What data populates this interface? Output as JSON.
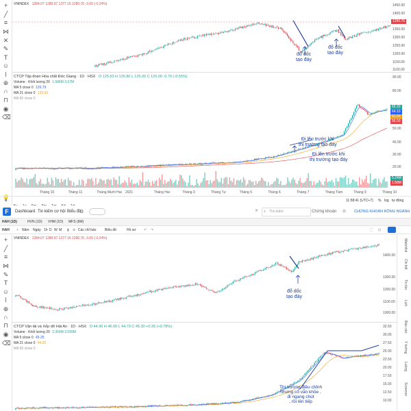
{
  "top": {
    "index_label": "VNINDEX",
    "index_values": "1284.07 1288.97 1277.16 1280.76 -3.05 (-0.24%)",
    "stock_title": "CTCP Tập đoàn Hóa chất Đức Giang · 1D · HSX",
    "stock_values": "O 125.60 H 126.80 L 125.00 C 126.00 -0.70 (-0.55%)",
    "volume_label": "Volume · Khối lượng 20",
    "volume_values": "1.586M 3.67M",
    "ma5_label": "MA 5 close 0",
    "ma5_value": "126.79",
    "ma21_label": "MA 21 close 0",
    "ma21_value": "125.93",
    "ma65_label": "MA 65 close 0",
    "index_axis": [
      "1450.00",
      "1400.00",
      "1350.00",
      "1300.00",
      "1250.00",
      "1200.00",
      "1150.00",
      "1100.00"
    ],
    "index_price_tag": "1280.76",
    "stock_axis": [
      "90.00",
      "80.00",
      "70.00",
      "60.00",
      "50.00",
      "40.00",
      "30.00",
      "20.00",
      "10.00"
    ],
    "stock_price_tags": [
      "65.20",
      "64.10",
      "61.90",
      "56.50"
    ],
    "vol_tags": [
      "5.24M",
      "1.58M"
    ],
    "time_labels": [
      "Tháng 10",
      "Tháng 11",
      "Tháng Mười Hai",
      "2021",
      "Tháng Hai",
      "Tháng 3",
      "Tháng Tư",
      "Tháng 5",
      "Tháng 6",
      "Tháng 7",
      "Tháng Tám",
      "Tháng 9",
      "Tháng 10"
    ],
    "annotations": {
      "a1": "đổ dốc\ntạo đáy",
      "a2": "đổ dốc\ntạo đáy",
      "a3": "Đi lên trước khi\nthị trường tạo đáy",
      "a4": "Đi lên trước khi\nthị trường tạo đáy"
    },
    "timeframes": [
      "5y",
      "1y",
      "6m",
      "3m",
      "1m",
      "5d",
      "1d"
    ],
    "clock": "11:58:41 (UTC+7)",
    "pct": "%",
    "log": "log",
    "auto": "tự động"
  },
  "bottom": {
    "nav": {
      "logo_letter": "F",
      "dashboard": "Dashboard",
      "news": "Tin kiếm cơ hội",
      "chart": "Biểu đồ",
      "search_placeholder": "Tìm kiếm",
      "market": "Chứng khoán",
      "firm": "CHỨNG KHOÁN RỒNG NGÀNH"
    },
    "tabs": [
      "HAH (1D)",
      "HVN (1D)",
      "VHM (1D)",
      "MFS (6M)"
    ],
    "toolbar": {
      "symbol": "HAH",
      "range": "Năm",
      "tf_day": "Ngày",
      "tfs": [
        "1h",
        "D",
        "W",
        "M"
      ],
      "indicators": "Các chỉ báo",
      "chart": "Biểu đồ",
      "template": "Hồ sơ"
    },
    "index_label": "VNINDEX",
    "index_values": "1284.07 1288.97 1277.16 1280.76 -3.05 (-0.24%)",
    "stock_title": "CTCP Vận tải và Xếp dỡ Hải An · 1D · HSX",
    "stock_values": "O 44.90 H 46.00 L 44.70 C 45.30 +0.35 (+0.78%)",
    "volume_label": "Volume · Khối lượng 20",
    "volume_values": "3.350M 3.099M",
    "ma5_label": "MA 5 close 0",
    "ma5_value": "45.25",
    "ma21_label": "MA 21 close 0",
    "ma21_value": "44.20",
    "ma65_label": "MA 65 close 0",
    "index_axis": [
      "1400.00",
      "1300.00",
      "1200.00",
      "1100.00",
      "1000.00",
      "900.00"
    ],
    "stock_axis": [
      "32.50",
      "30.00",
      "27.50",
      "25.00",
      "22.50",
      "20.00",
      "17.50",
      "15.00",
      "12.50",
      "10.00"
    ],
    "annotations": {
      "a1": "đổ dốc\ntạo đáy",
      "a2": "Thị trường điều chỉnh\nnhưng cổ vẫn khỏe ,\nđi ngang chút\n, rồi lên tiếp"
    },
    "right_panel_items": [
      "Watchlist",
      "Chi tiết",
      "Tin tức",
      "Lịch",
      "Báo cáo",
      "Ý tưởng",
      "Luồng",
      "Screener"
    ]
  }
}
